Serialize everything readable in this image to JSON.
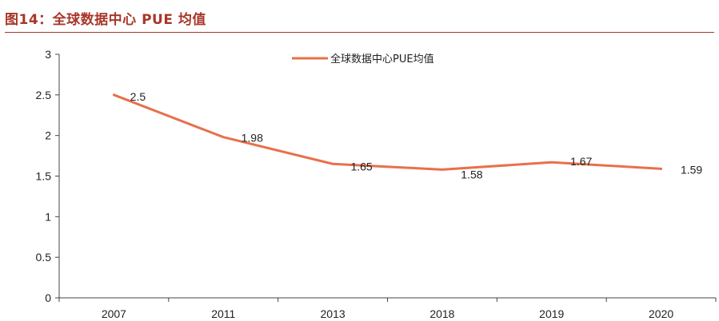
{
  "figure": {
    "title": "图14：全球数据中心 PUE 均值"
  },
  "chart_data": {
    "type": "line",
    "title": "",
    "xlabel": "",
    "ylabel": "",
    "categories": [
      "2007",
      "2011",
      "2013",
      "2018",
      "2019",
      "2020"
    ],
    "series": [
      {
        "name": "全球数据中心PUE均值",
        "values": [
          2.5,
          1.98,
          1.65,
          1.58,
          1.67,
          1.59
        ],
        "color": "#E8704A"
      }
    ],
    "ylim": [
      0,
      3
    ],
    "yticks": [
      0,
      0.5,
      1,
      1.5,
      2,
      2.5,
      3
    ],
    "ytick_labels": [
      "0",
      "0.5",
      "1",
      "1.5",
      "2",
      "2.5",
      "3"
    ],
    "data_labels": [
      "2.5",
      "1.98",
      "1.65",
      "1.58",
      "1.67",
      "1.59"
    ],
    "grid": false,
    "legend_position": "top-center"
  }
}
